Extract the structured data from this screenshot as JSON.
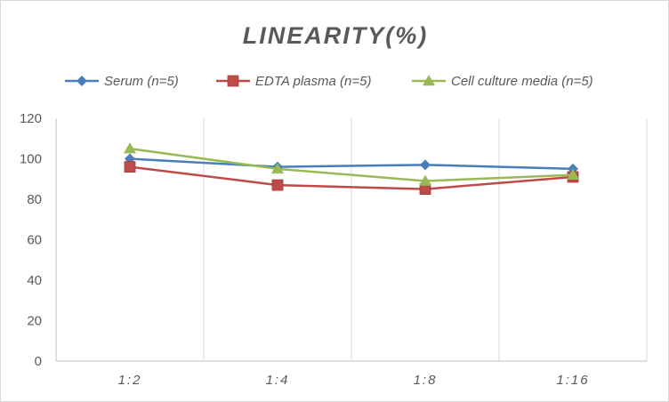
{
  "chart_data": {
    "type": "line",
    "title": "LINEARITY(%)",
    "xlabel": "",
    "ylabel": "",
    "categories": [
      "1:2",
      "1:4",
      "1:8",
      "1:16"
    ],
    "ylim": [
      0,
      120
    ],
    "yticks": [
      0,
      20,
      40,
      60,
      80,
      100,
      120
    ],
    "grid": {
      "horizontal": false,
      "vertical": true
    },
    "legend_position": "top",
    "series": [
      {
        "name": "Serum (n=5)",
        "values": [
          100,
          96,
          97,
          95
        ],
        "color": "#4a7ebb",
        "marker": "diamond"
      },
      {
        "name": "EDTA plasma (n=5)",
        "values": [
          96,
          87,
          85,
          91
        ],
        "color": "#be4b48",
        "marker": "square"
      },
      {
        "name": "Cell culture media (n=5)",
        "values": [
          105,
          95,
          89,
          92
        ],
        "color": "#98b954",
        "marker": "triangle"
      }
    ],
    "colors": {
      "axis": "#bfbfbf",
      "grid": "#d9d9d9",
      "text": "#595959"
    }
  }
}
